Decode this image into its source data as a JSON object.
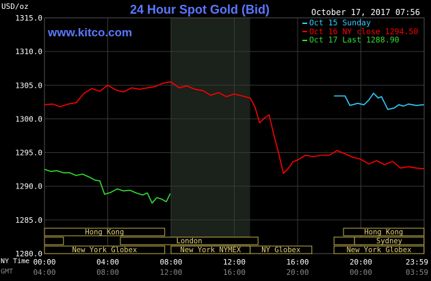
{
  "chart_data": {
    "type": "line",
    "title": "24 Hour Spot Gold (Bid)",
    "ylabel": "USD/oz",
    "source": "www.kitco.com",
    "datetime": "October 17, 2017 07:56",
    "ylim": [
      1280,
      1315
    ],
    "y_ticks": [
      "1315.0",
      "1310.0",
      "1305.0",
      "1300.0",
      "1295.0",
      "1290.0",
      "1285.0",
      "1280.0"
    ],
    "time_axis_ny_label": "NY Time",
    "time_axis_gmt_label": "GMT",
    "x_ticks_ny": [
      "00:00",
      "04:00",
      "08:00",
      "12:00",
      "16:00",
      "20:00",
      "23:59"
    ],
    "x_ticks_gmt": [
      "04:00",
      "08:00",
      "12:00",
      "16:00",
      "20:00",
      "00:00",
      "03:59"
    ],
    "legend": [
      {
        "label": "Oct 15 Sunday",
        "color": "#33ccff"
      },
      {
        "label": "Oct 16 NY close 1294.50",
        "color": "#ff0000"
      },
      {
        "label": "Oct 17 Last 1288.90",
        "color": "#33dd33"
      }
    ],
    "series": [
      {
        "name": "Oct 15 Sunday",
        "color": "#33ccff",
        "x": [
          18.3,
          19.0,
          19.3,
          19.8,
          20.2,
          20.5,
          20.8,
          21.1,
          21.3,
          21.7,
          22.1,
          22.4,
          22.7,
          23.0,
          23.5,
          23.98
        ],
        "y": [
          1303.4,
          1303.4,
          1302.0,
          1302.3,
          1302.1,
          1302.8,
          1303.8,
          1303.1,
          1303.3,
          1301.4,
          1301.6,
          1302.1,
          1301.9,
          1302.2,
          1302.0,
          1302.1
        ]
      },
      {
        "name": "Oct 16 NY close 1294.50",
        "color": "#ff0000",
        "x": [
          0.0,
          0.5,
          1.0,
          1.5,
          2.0,
          2.5,
          3.0,
          3.5,
          4.0,
          4.5,
          5.0,
          5.5,
          6.0,
          6.5,
          7.0,
          7.5,
          8.0,
          8.5,
          9.0,
          9.5,
          10.0,
          10.5,
          11.0,
          11.5,
          12.0,
          12.5,
          13.0,
          13.3,
          13.6,
          13.9,
          14.2,
          14.5,
          14.8,
          15.1,
          15.4,
          15.7,
          16.0,
          16.5,
          17.0,
          17.5,
          18.0,
          18.5,
          19.0,
          19.5,
          20.0,
          20.5,
          21.0,
          21.5,
          22.0,
          22.5,
          23.0,
          23.5,
          23.98
        ],
        "y": [
          1302.1,
          1302.2,
          1301.8,
          1302.2,
          1302.4,
          1303.8,
          1304.5,
          1304.1,
          1305.0,
          1304.3,
          1304.0,
          1304.6,
          1304.4,
          1304.6,
          1304.8,
          1305.3,
          1305.5,
          1304.6,
          1304.9,
          1304.4,
          1304.2,
          1303.5,
          1303.9,
          1303.3,
          1303.7,
          1303.4,
          1303.1,
          1301.8,
          1299.4,
          1300.1,
          1300.6,
          1297.6,
          1294.9,
          1291.9,
          1292.6,
          1293.6,
          1293.9,
          1294.6,
          1294.4,
          1294.6,
          1294.6,
          1295.3,
          1294.8,
          1294.3,
          1294.0,
          1293.3,
          1293.8,
          1293.2,
          1293.7,
          1292.7,
          1292.9,
          1292.7,
          1292.6
        ]
      },
      {
        "name": "Oct 17 Last 1288.90",
        "color": "#33dd33",
        "x": [
          0.0,
          0.4,
          0.8,
          1.2,
          1.6,
          2.0,
          2.4,
          2.8,
          3.2,
          3.5,
          3.8,
          4.2,
          4.6,
          5.0,
          5.4,
          5.8,
          6.2,
          6.5,
          6.8,
          7.1,
          7.4,
          7.7,
          7.95
        ],
        "y": [
          1292.5,
          1292.2,
          1292.3,
          1292.0,
          1292.0,
          1291.6,
          1291.8,
          1291.4,
          1290.9,
          1290.8,
          1288.8,
          1289.1,
          1289.6,
          1289.3,
          1289.4,
          1289.0,
          1288.7,
          1289.0,
          1287.5,
          1288.3,
          1288.1,
          1287.7,
          1288.9
        ]
      }
    ],
    "shaded_region": {
      "x_start": 8.0,
      "x_end": 13.0
    },
    "sessions_upper": [
      {
        "label": "Hong Kong",
        "start": 0.0,
        "end": 7.6
      },
      {
        "label": "Hong Kong",
        "start": 18.9,
        "end": 23.99
      }
    ],
    "sessions_middle": [
      {
        "label": "",
        "start": 0.0,
        "end": 1.2
      },
      {
        "label": "London",
        "start": 4.8,
        "end": 13.5
      },
      {
        "label": "",
        "start": 18.3,
        "end": 19.6
      },
      {
        "label": "Sydney",
        "start": 19.6,
        "end": 23.99
      }
    ],
    "sessions_lower": [
      {
        "label": "New York Globex",
        "start": 0.0,
        "end": 7.6
      },
      {
        "label": "New York NYMEX",
        "start": 8.0,
        "end": 13.0
      },
      {
        "label": "NY Globex",
        "start": 13.0,
        "end": 16.9
      },
      {
        "label": "New York Globex",
        "start": 18.3,
        "end": 23.99
      }
    ]
  }
}
